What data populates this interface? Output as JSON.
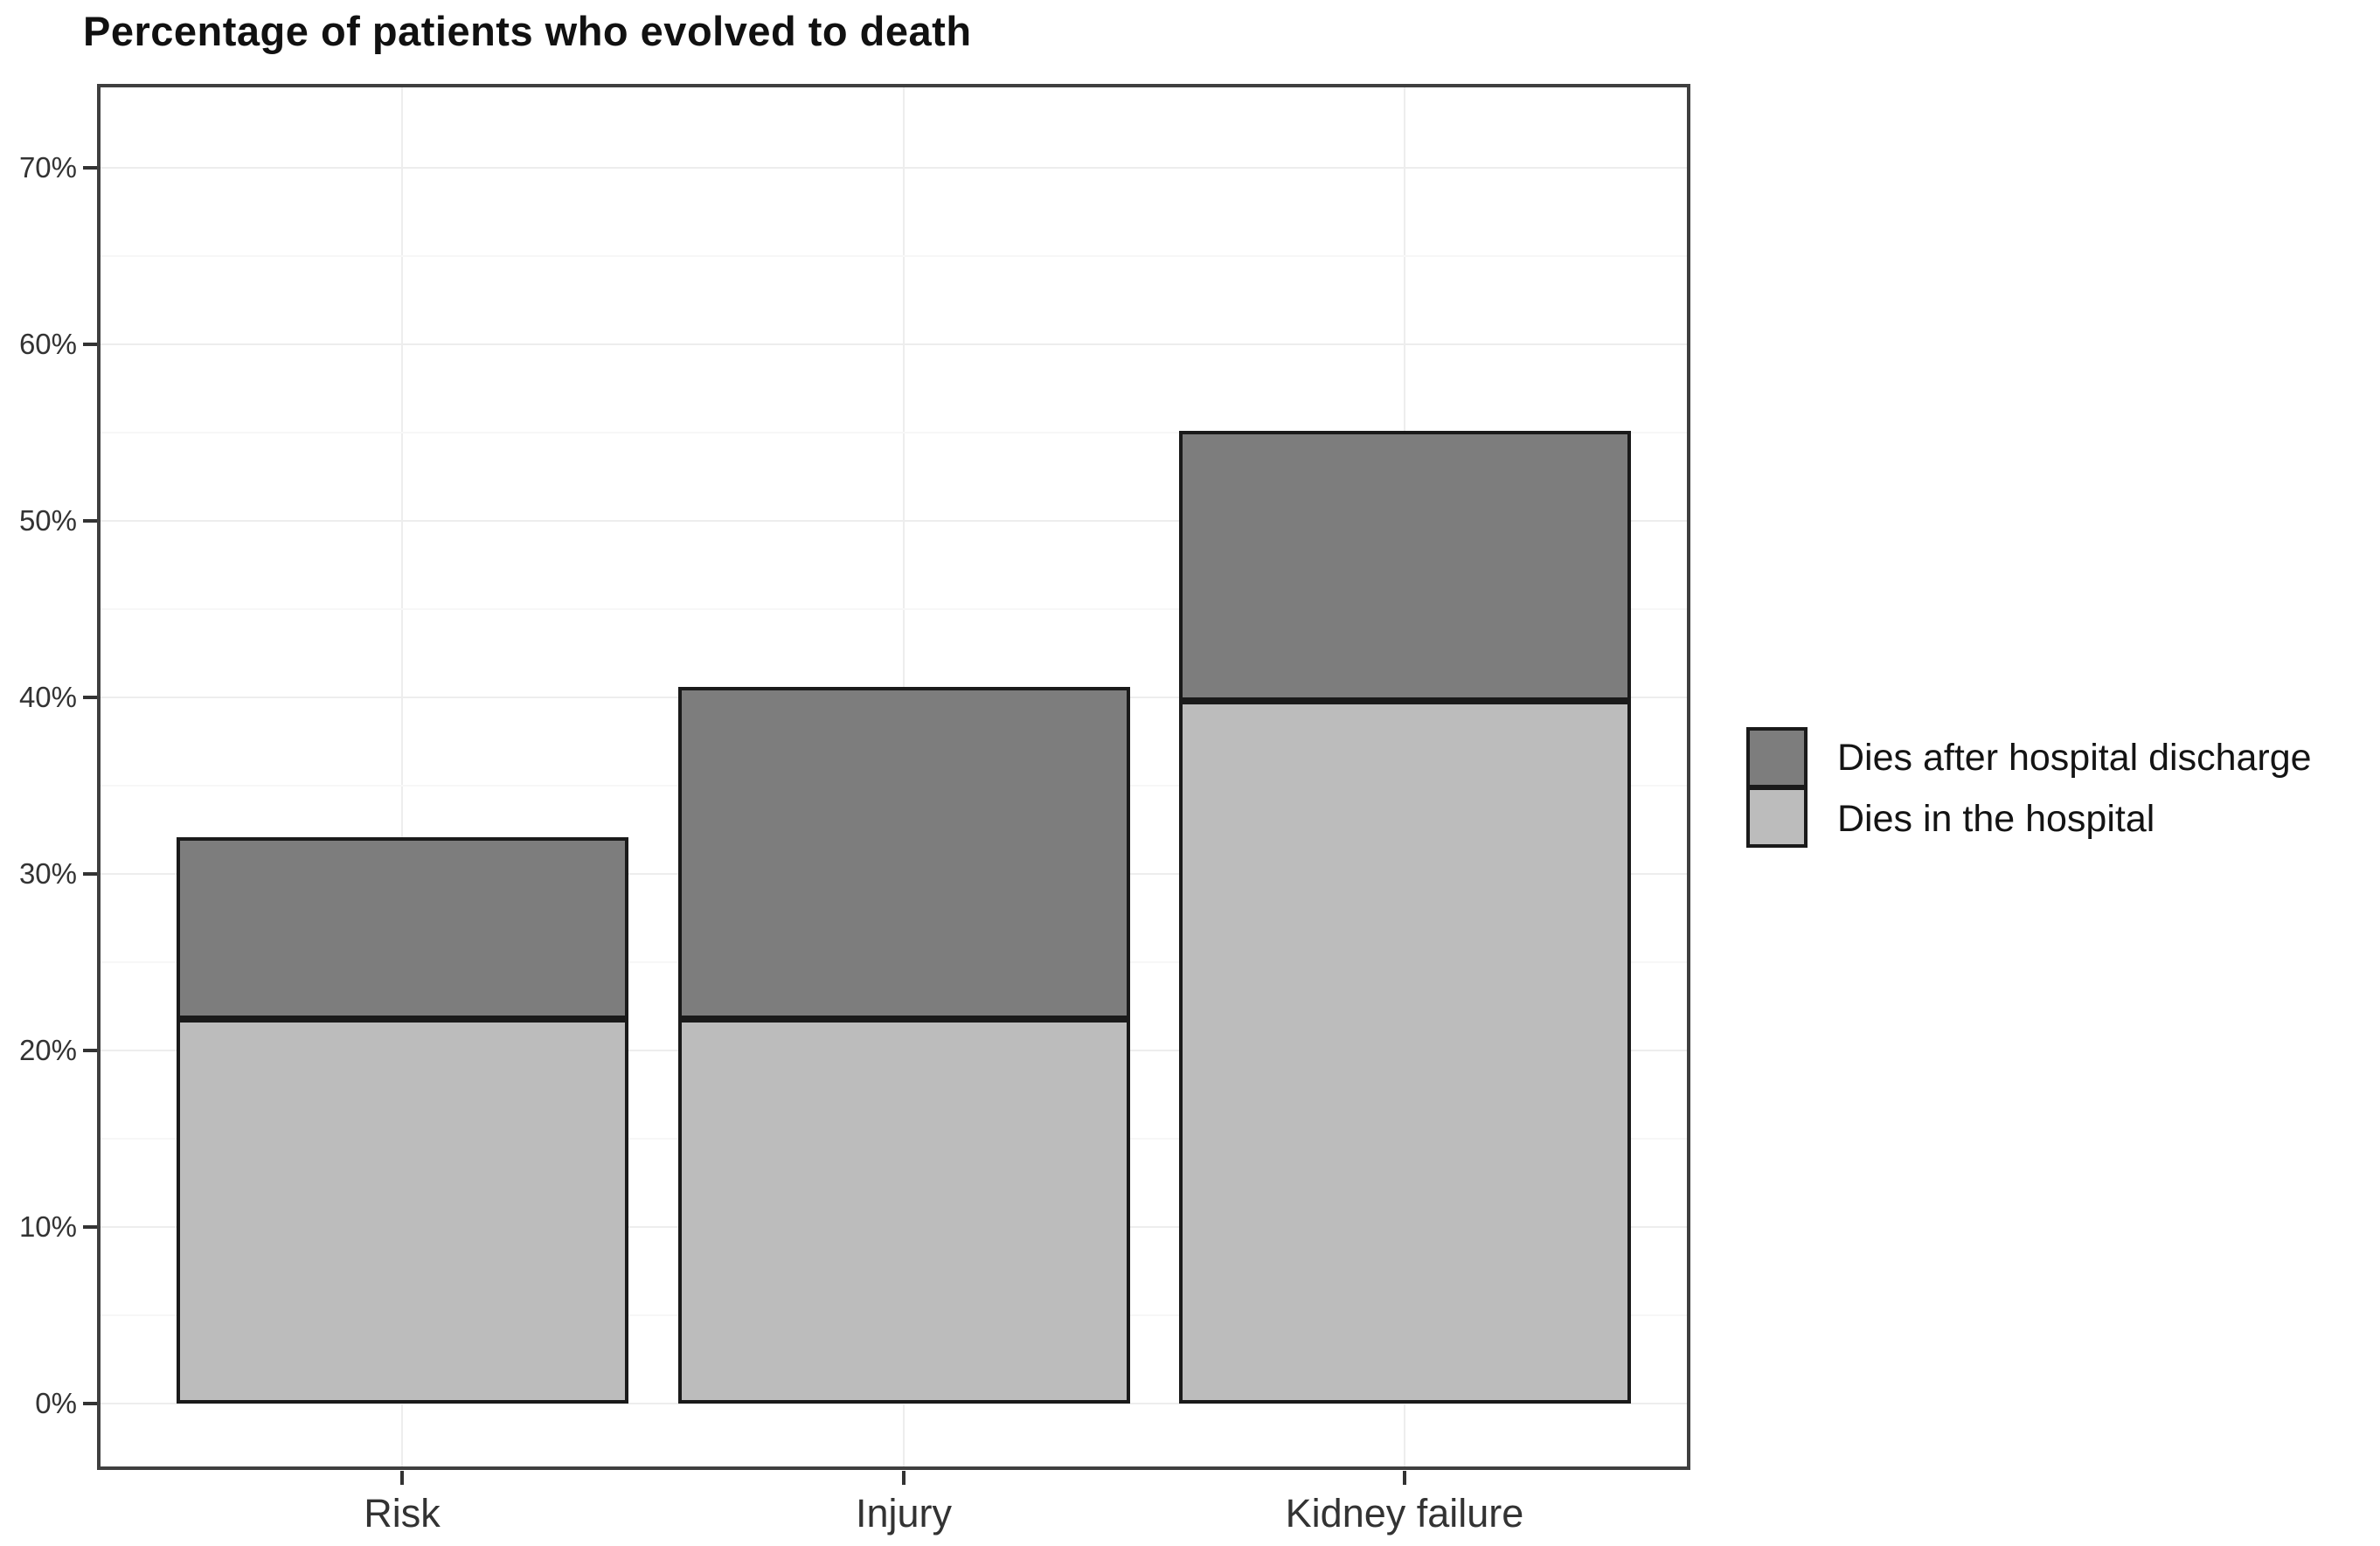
{
  "title": "Percentage of patients who evolved to death",
  "chart_data": {
    "type": "bar",
    "stacked": true,
    "title": "Percentage of patients who evolved to death",
    "categories": [
      "Risk",
      "Injury",
      "Kidney failure"
    ],
    "series": [
      {
        "name": "Dies in the hospital",
        "color": "#bcbcbc",
        "values": [
          21.8,
          21.8,
          39.8
        ]
      },
      {
        "name": "Dies after hospital discharge",
        "color": "#7d7d7d",
        "values": [
          10.3,
          18.8,
          15.3
        ]
      }
    ],
    "stack_totals_pct": [
      32.1,
      40.6,
      55.1
    ],
    "xlabel": "",
    "ylabel": "",
    "ylim": [
      0,
      70
    ],
    "yticks_pct": [
      0,
      10,
      20,
      30,
      40,
      50,
      60,
      70
    ],
    "ytick_labels": [
      "0%",
      "10%",
      "20%",
      "30%",
      "40%",
      "50%",
      "60%",
      "70%"
    ],
    "grid": {
      "major": true,
      "minor": true,
      "minor_step_pct": 5
    },
    "legend_position": "right",
    "legend": [
      {
        "label": "Dies after hospital discharge",
        "swatch_color": "#7d7d7d"
      },
      {
        "label": "Dies in the hospital",
        "swatch_color": "#bcbcbc"
      }
    ],
    "bar_outline_color": "#1a1a1a"
  },
  "colors": {
    "background": "#ffffff",
    "panel_border": "#3f3f3f",
    "grid_major": "#ededed",
    "grid_minor": "#f7f7f7",
    "tick_text": "#333333",
    "category_text": "#333333",
    "title_text": "#111111",
    "legend_text": "#141414"
  }
}
